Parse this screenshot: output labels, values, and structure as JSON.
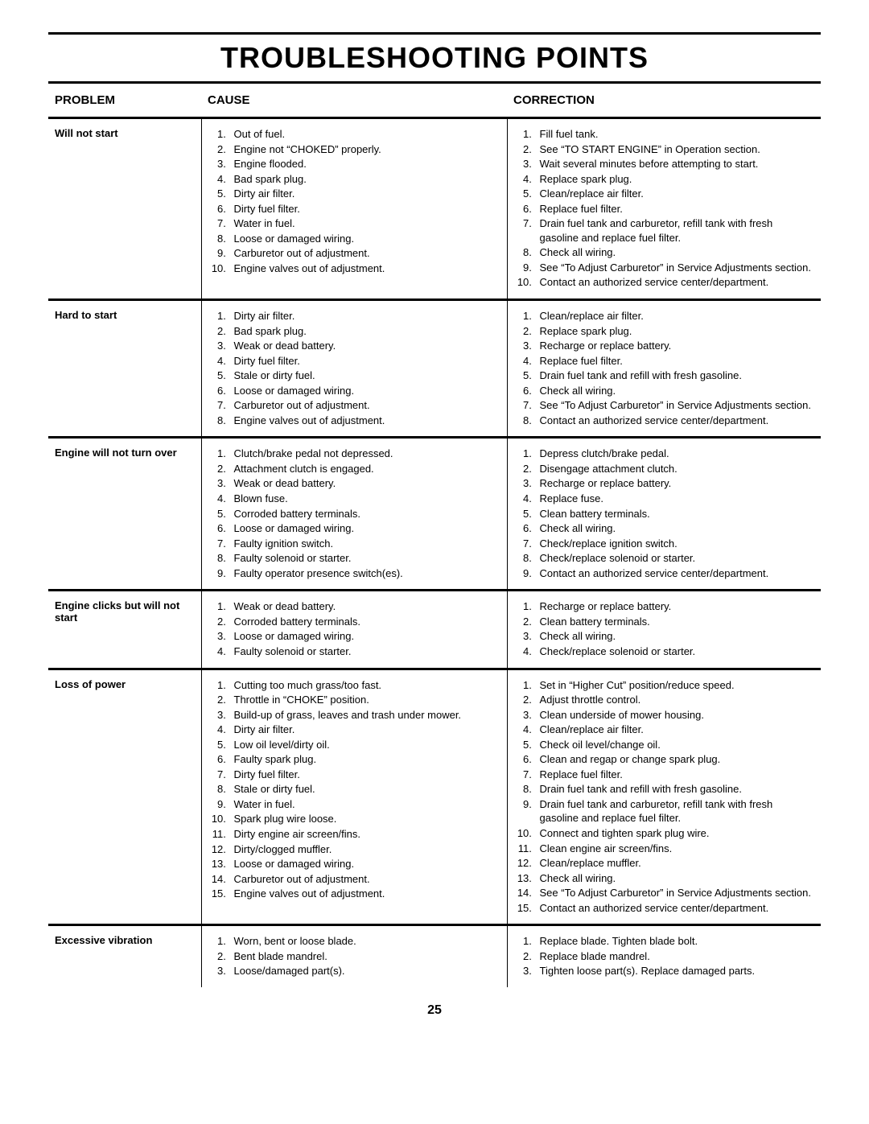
{
  "title": "TROUBLESHOOTING POINTS",
  "page_number": "25",
  "headers": {
    "problem": "PROBLEM",
    "cause": "CAUSE",
    "correction": "CORRECTION"
  },
  "rows": [
    {
      "problem": "Will not start",
      "causes": [
        "Out of fuel.",
        "Engine not “CHOKED” properly.",
        "Engine flooded.",
        "Bad spark plug.",
        "Dirty air filter.",
        "Dirty fuel filter.",
        "Water in fuel.",
        "Loose or damaged wiring.",
        "Carburetor out of adjustment.",
        "Engine valves out of adjustment."
      ],
      "corrections": [
        "Fill fuel tank.",
        "See “TO START ENGINE” in Operation section.",
        "Wait several minutes before attempting to start.",
        "Replace spark plug.",
        "Clean/replace air filter.",
        "Replace fuel filter.",
        "Drain fuel tank and carburetor, refill tank with fresh gasoline and replace fuel filter.",
        "Check all wiring.",
        "See “To Adjust Carburetor” in Service Adjustments section.",
        "Contact an authorized service center/department."
      ]
    },
    {
      "problem": "Hard to start",
      "causes": [
        "Dirty air filter.",
        "Bad spark plug.",
        "Weak or dead battery.",
        "Dirty fuel filter.",
        "Stale or dirty fuel.",
        "Loose or damaged wiring.",
        "Carburetor out of adjustment.",
        "Engine valves out of adjustment."
      ],
      "corrections": [
        "Clean/replace air filter.",
        "Replace spark plug.",
        "Recharge or replace battery.",
        "Replace fuel filter.",
        "Drain fuel tank and refill with fresh gasoline.",
        "Check all wiring.",
        "See “To Adjust Carburetor” in Service Adjustments section.",
        "Contact an authorized service center/department."
      ]
    },
    {
      "problem": "Engine will not turn over",
      "causes": [
        "Clutch/brake pedal not depressed.",
        "Attachment clutch is engaged.",
        "Weak or dead battery.",
        "Blown fuse.",
        "Corroded battery terminals.",
        "Loose or damaged wiring.",
        "Faulty ignition switch.",
        "Faulty solenoid or starter.",
        "Faulty operator presence switch(es)."
      ],
      "corrections": [
        "Depress clutch/brake pedal.",
        "Disengage attachment clutch.",
        "Recharge or replace battery.",
        "Replace fuse.",
        "Clean battery terminals.",
        "Check all wiring.",
        "Check/replace ignition switch.",
        "Check/replace solenoid or starter.",
        "Contact an authorized service center/department."
      ]
    },
    {
      "problem": "Engine clicks but will not start",
      "causes": [
        "Weak or dead battery.",
        "Corroded battery terminals.",
        "Loose or damaged wiring.",
        "Faulty solenoid or starter."
      ],
      "corrections": [
        "Recharge or replace battery.",
        "Clean battery terminals.",
        "Check all wiring.",
        "Check/replace solenoid or starter."
      ]
    },
    {
      "problem": "Loss of power",
      "causes": [
        "Cutting too much grass/too fast.",
        "Throttle in “CHOKE” position.",
        "Build-up of grass, leaves and trash under mower.",
        "Dirty air filter.",
        "Low oil level/dirty oil.",
        "Faulty spark plug.",
        "Dirty fuel filter.",
        "Stale or dirty fuel.",
        "Water in fuel.",
        "Spark plug wire loose.",
        "Dirty engine air screen/fins.",
        "Dirty/clogged muffler.",
        "Loose or damaged wiring.",
        "Carburetor out of adjustment.",
        "Engine valves out of adjustment."
      ],
      "corrections": [
        "Set in “Higher Cut” position/reduce speed.",
        "Adjust throttle control.",
        "Clean underside of mower housing.",
        "Clean/replace air filter.",
        "Check oil level/change oil.",
        "Clean and regap or change spark plug.",
        "Replace fuel filter.",
        "Drain fuel tank and refill with fresh gasoline.",
        "Drain fuel tank and carburetor, refill tank with fresh gasoline and replace fuel filter.",
        "Connect and tighten spark plug wire.",
        "Clean engine air screen/fins.",
        "Clean/replace muffler.",
        "Check all wiring.",
        "See “To Adjust Carburetor” in Service Adjustments section.",
        "Contact an authorized service center/department."
      ]
    },
    {
      "problem": "Excessive vibration",
      "causes": [
        "Worn, bent or loose blade.",
        "Bent blade mandrel.",
        "Loose/damaged part(s)."
      ],
      "corrections": [
        "Replace blade.  Tighten blade bolt.",
        "Replace blade mandrel.",
        "Tighten loose part(s).  Replace damaged parts."
      ]
    }
  ]
}
